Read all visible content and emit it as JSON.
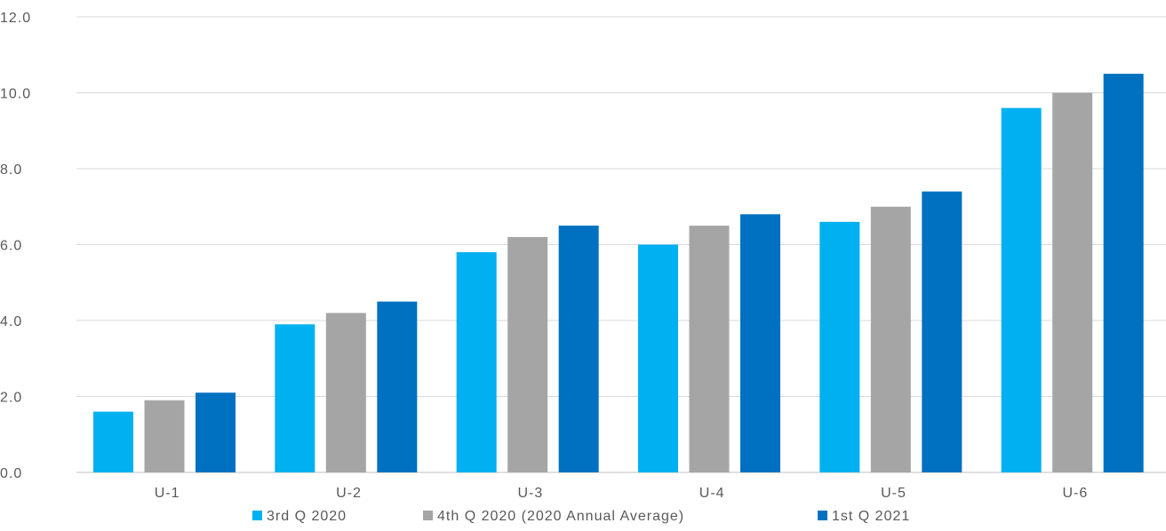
{
  "chart_data": {
    "type": "bar",
    "title": "",
    "xlabel": "",
    "ylabel": "",
    "ylim": [
      0,
      12
    ],
    "yticks": [
      "0.0",
      "2.0",
      "4.0",
      "6.0",
      "8.0",
      "10.0",
      "12.0"
    ],
    "ytick_values": [
      0,
      2,
      4,
      6,
      8,
      10,
      12
    ],
    "categories": [
      "U-1",
      "U-2",
      "U-3",
      "U-4",
      "U-5",
      "U-6"
    ],
    "series": [
      {
        "name": "3rd Q 2020",
        "color": "#00B0F0",
        "values": [
          1.6,
          3.9,
          5.8,
          6.0,
          6.6,
          9.6
        ]
      },
      {
        "name": "4th Q 2020 (2020 Annual Average)",
        "color": "#A5A5A5",
        "values": [
          1.9,
          4.2,
          6.2,
          6.5,
          7.0,
          10.0
        ]
      },
      {
        "name": "1st Q 2021",
        "color": "#0070C0",
        "values": [
          2.1,
          4.5,
          6.5,
          6.8,
          7.4,
          10.5
        ]
      }
    ],
    "grid": true,
    "legend": "bottom-center"
  }
}
